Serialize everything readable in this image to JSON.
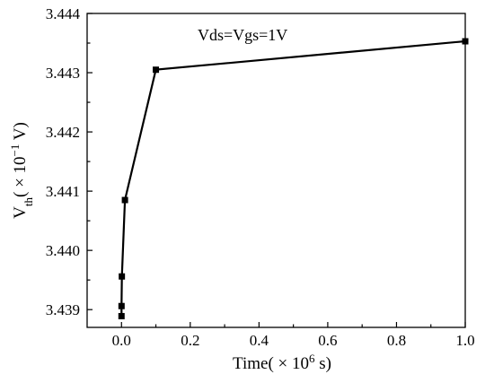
{
  "chart_data": {
    "type": "line",
    "annotation": "Vds=Vgs=1V",
    "xlabel": {
      "main": "Time( × 10",
      "sup": "6",
      "tail": " s)"
    },
    "ylabel": {
      "main": "V",
      "sub": "th",
      "mid": "( × 10",
      "sup": "−1",
      "tail": " V)"
    },
    "xlim": [
      -0.1,
      1.0
    ],
    "ylim": [
      3.4387,
      3.444
    ],
    "xticks": [
      "0.0",
      "0.2",
      "0.4",
      "0.6",
      "0.8",
      "1.0"
    ],
    "yticks": [
      "3.439",
      "3.440",
      "3.441",
      "3.442",
      "3.443",
      "3.444"
    ],
    "grid": false,
    "series": [
      {
        "x": [
          0.0,
          0.0001,
          0.001,
          0.01,
          0.1,
          1.0
        ],
        "y": [
          3.43889,
          3.43906,
          3.43956,
          3.44085,
          3.44305,
          3.44353
        ]
      }
    ]
  }
}
